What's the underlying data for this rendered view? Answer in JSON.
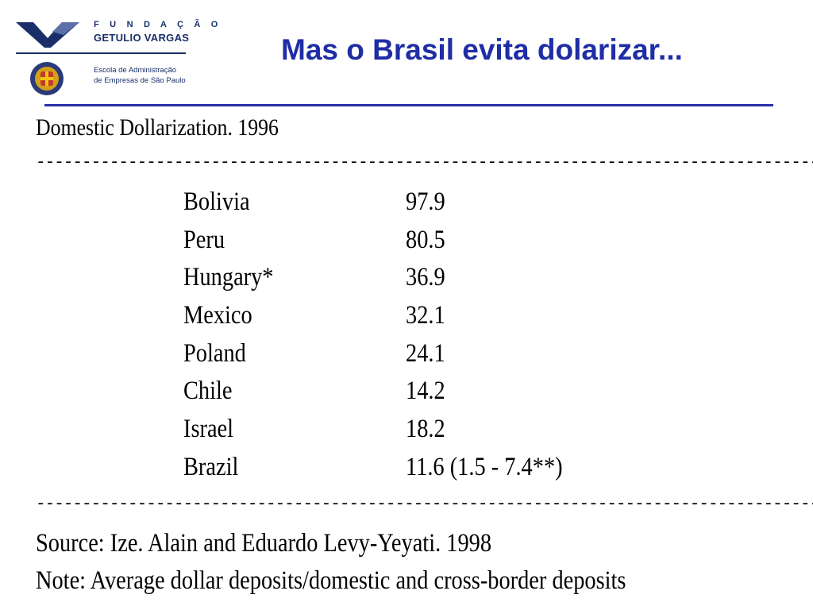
{
  "header": {
    "logo": {
      "line1": "F U N D A Ç Ã O",
      "line2": "GETULIO VARGAS",
      "school_line1": "Escola de Administração",
      "school_line2": "de Empresas de São Paulo"
    },
    "title": "Mas o Brasil evita dolarizar...",
    "colors": {
      "title": "#1f2da6",
      "logo": "#1a2f6a",
      "rule": "#2a2fa8"
    }
  },
  "table": {
    "heading": "Domestic Dollarization. 1996",
    "separator": "------------------------------------------------------------------------------------------------------------------------",
    "rows": [
      {
        "country": "Bolivia",
        "value": "97.9"
      },
      {
        "country": "Peru",
        "value": "80.5"
      },
      {
        "country": "Hungary*",
        "value": "36.9"
      },
      {
        "country": "Mexico",
        "value": "32.1"
      },
      {
        "country": "Poland",
        "value": "24.1"
      },
      {
        "country": "Chile",
        "value": "14.2"
      },
      {
        "country": "Israel",
        "value": "18.2"
      },
      {
        "country": "Brazil",
        "value": "11.6 (1.5 - 7.4**)"
      }
    ]
  },
  "footer": {
    "source": "Source: Ize. Alain and Eduardo Levy-Yeyati. 1998",
    "note": "Note: Average dollar deposits/domestic and cross-border deposits"
  }
}
